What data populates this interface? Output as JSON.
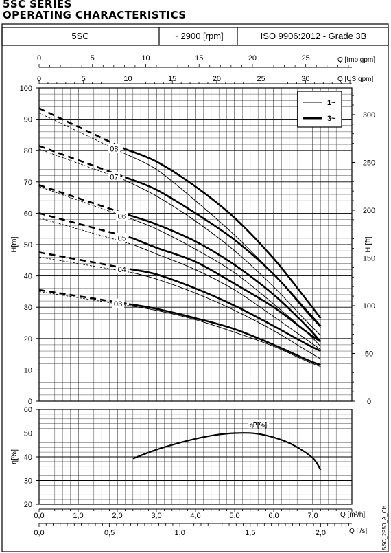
{
  "header": {
    "series_title": "5SC SERIES",
    "section_title": "OPERATING CHARACTERISTICS"
  },
  "info_bar": {
    "model": "5SC",
    "speed": "~ 2900 [rpm]",
    "standard": "ISO 9906:2012 - Grade 3B"
  },
  "legend": {
    "single_phase": "1~",
    "three_phase": "3~"
  },
  "side_label": "5SC_2P50_A_CH",
  "colors": {
    "line": "#000000",
    "grid": "#000000",
    "background": "#ffffff"
  },
  "chart_data": [
    {
      "type": "line",
      "title": "",
      "xlabel": "Q [m³/h]",
      "ylabel": "H[m]",
      "y2label": "H [ft]",
      "xlim": [
        0,
        8
      ],
      "ylim": [
        0,
        100
      ],
      "y2lim": [
        0,
        328
      ],
      "grid": true,
      "legend_position": "top-right",
      "x_ticks": [
        "0,0",
        "1,0",
        "2,0",
        "3,0",
        "4,0",
        "5,0",
        "6,0",
        "7,0"
      ],
      "x_ticks_ls": [
        "0,0",
        "0,5",
        "1,0",
        "1,5",
        "2,0"
      ],
      "x_ticks_imp_gpm": [
        "0",
        "5",
        "10",
        "15",
        "20",
        "25"
      ],
      "x_ticks_us_gpm": [
        "0",
        "5",
        "10",
        "15",
        "20",
        "25",
        "30"
      ],
      "x_ls_label": "Q [l/s]",
      "x_imp_label": "Q [Imp gpm]",
      "x_us_label": "Q [US gpm]",
      "y_ticks": [
        "0",
        "10",
        "20",
        "30",
        "40",
        "50",
        "60",
        "70",
        "80",
        "90",
        "100"
      ],
      "y2_ticks": [
        "0",
        "50",
        "100",
        "150",
        "200",
        "250",
        "300"
      ],
      "series": [
        {
          "name": "08",
          "phase": "3~",
          "x": [
            2.2,
            3.0,
            4.0,
            5.0,
            6.0,
            6.8,
            7.2
          ],
          "y": [
            80.5,
            76.5,
            68.5,
            58.5,
            45.5,
            33,
            26.5
          ]
        },
        {
          "name": "08",
          "phase": "1~",
          "x": [
            2.2,
            3.0,
            4.0,
            5.0,
            6.0,
            6.8,
            7.2
          ],
          "y": [
            79,
            74,
            64,
            53,
            40.5,
            29,
            23.5
          ]
        },
        {
          "name": "07",
          "phase": "3~",
          "x": [
            2.2,
            3.0,
            4.0,
            5.0,
            6.0,
            6.8,
            7.2
          ],
          "y": [
            71.5,
            67.5,
            60,
            51.5,
            40.5,
            29.5,
            24
          ]
        },
        {
          "name": "07",
          "phase": "1~",
          "x": [
            2.2,
            3.0,
            4.0,
            5.0,
            6.0,
            6.8,
            7.2
          ],
          "y": [
            70.5,
            65.5,
            57.5,
            48,
            36.5,
            26,
            21
          ]
        },
        {
          "name": "06",
          "phase": "3~",
          "x": [
            2.4,
            3.0,
            4.0,
            5.0,
            6.0,
            6.8,
            7.2
          ],
          "y": [
            59,
            56.5,
            51,
            43.5,
            34,
            24.5,
            19
          ]
        },
        {
          "name": "06",
          "phase": "1~",
          "x": [
            2.4,
            3.0,
            4.0,
            5.0,
            6.0,
            6.8,
            7.2
          ],
          "y": [
            58,
            55,
            48.5,
            41,
            31,
            22.5,
            17.5
          ]
        },
        {
          "name": "05",
          "phase": "3~",
          "x": [
            2.4,
            3.0,
            4.0,
            5.0,
            6.0,
            6.8,
            7.2
          ],
          "y": [
            52,
            49,
            44.5,
            37.5,
            30,
            22.5,
            19
          ]
        },
        {
          "name": "05",
          "phase": "1~",
          "x": [
            2.4,
            3.0,
            4.0,
            5.0,
            6.0,
            6.8,
            7.2
          ],
          "y": [
            50,
            47,
            42,
            35.5,
            27,
            20,
            16.5
          ]
        },
        {
          "name": "04",
          "phase": "3~",
          "x": [
            2.4,
            3.0,
            4.0,
            5.0,
            6.0,
            6.8,
            7.2
          ],
          "y": [
            42,
            40.5,
            36,
            30.5,
            24,
            18.5,
            16
          ]
        },
        {
          "name": "04",
          "phase": "1~",
          "x": [
            2.4,
            3.0,
            4.0,
            5.0,
            6.0,
            6.8,
            7.2
          ],
          "y": [
            41,
            39,
            34.5,
            29,
            22.5,
            16.5,
            13.5
          ]
        },
        {
          "name": "03",
          "phase": "3~",
          "x": [
            2.3,
            3.0,
            4.0,
            5.0,
            6.0,
            6.8,
            7.2
          ],
          "y": [
            31,
            29.5,
            26.5,
            23,
            18,
            13.5,
            11.5
          ]
        },
        {
          "name": "03",
          "phase": "1~",
          "x": [
            2.3,
            3.0,
            4.0,
            5.0,
            6.0,
            6.8,
            7.2
          ],
          "y": [
            30.5,
            29,
            26,
            22,
            17.5,
            13,
            11
          ]
        }
      ],
      "extrapolated_segments": [
        {
          "name": "08",
          "phase": "3~",
          "x": [
            0,
            2.2
          ],
          "y": [
            93.5,
            80.5
          ]
        },
        {
          "name": "08",
          "phase": "1~",
          "x": [
            0,
            2.2
          ],
          "y": [
            92,
            79
          ]
        },
        {
          "name": "07",
          "phase": "3~",
          "x": [
            0,
            2.2
          ],
          "y": [
            81.5,
            71.5
          ]
        },
        {
          "name": "07",
          "phase": "1~",
          "x": [
            0,
            2.2
          ],
          "y": [
            80.5,
            70.5
          ]
        },
        {
          "name": "06",
          "phase": "3~",
          "x": [
            0,
            2.4
          ],
          "y": [
            69,
            59
          ]
        },
        {
          "name": "06",
          "phase": "1~",
          "x": [
            0,
            2.4
          ],
          "y": [
            68.5,
            58
          ]
        },
        {
          "name": "05",
          "phase": "3~",
          "x": [
            0,
            2.4
          ],
          "y": [
            60,
            52
          ]
        },
        {
          "name": "05",
          "phase": "1~",
          "x": [
            0,
            2.4
          ],
          "y": [
            58.5,
            50
          ]
        },
        {
          "name": "04",
          "phase": "3~",
          "x": [
            0,
            2.4
          ],
          "y": [
            47.5,
            42
          ]
        },
        {
          "name": "04",
          "phase": "1~",
          "x": [
            0,
            2.4
          ],
          "y": [
            46,
            41
          ]
        },
        {
          "name": "03",
          "phase": "3~",
          "x": [
            0,
            2.3
          ],
          "y": [
            35.5,
            31
          ]
        },
        {
          "name": "03",
          "phase": "1~",
          "x": [
            0,
            2.3
          ],
          "y": [
            35,
            30.5
          ]
        }
      ]
    },
    {
      "type": "line",
      "title": "",
      "xlabel": "Q [m³/h]",
      "ylabel": "η[%]",
      "xlim": [
        0,
        8
      ],
      "ylim": [
        20,
        60
      ],
      "grid": true,
      "y_ticks": [
        "20",
        "30",
        "40",
        "50",
        "60"
      ],
      "series": [
        {
          "name": "ηP[%]",
          "x": [
            2.4,
            3.0,
            3.5,
            4.0,
            4.5,
            5.0,
            5.5,
            6.0,
            6.5,
            7.0,
            7.2
          ],
          "y": [
            39.3,
            43,
            45.5,
            47.6,
            49.2,
            50,
            49.9,
            48.2,
            45,
            39.5,
            34.5
          ]
        }
      ]
    }
  ]
}
